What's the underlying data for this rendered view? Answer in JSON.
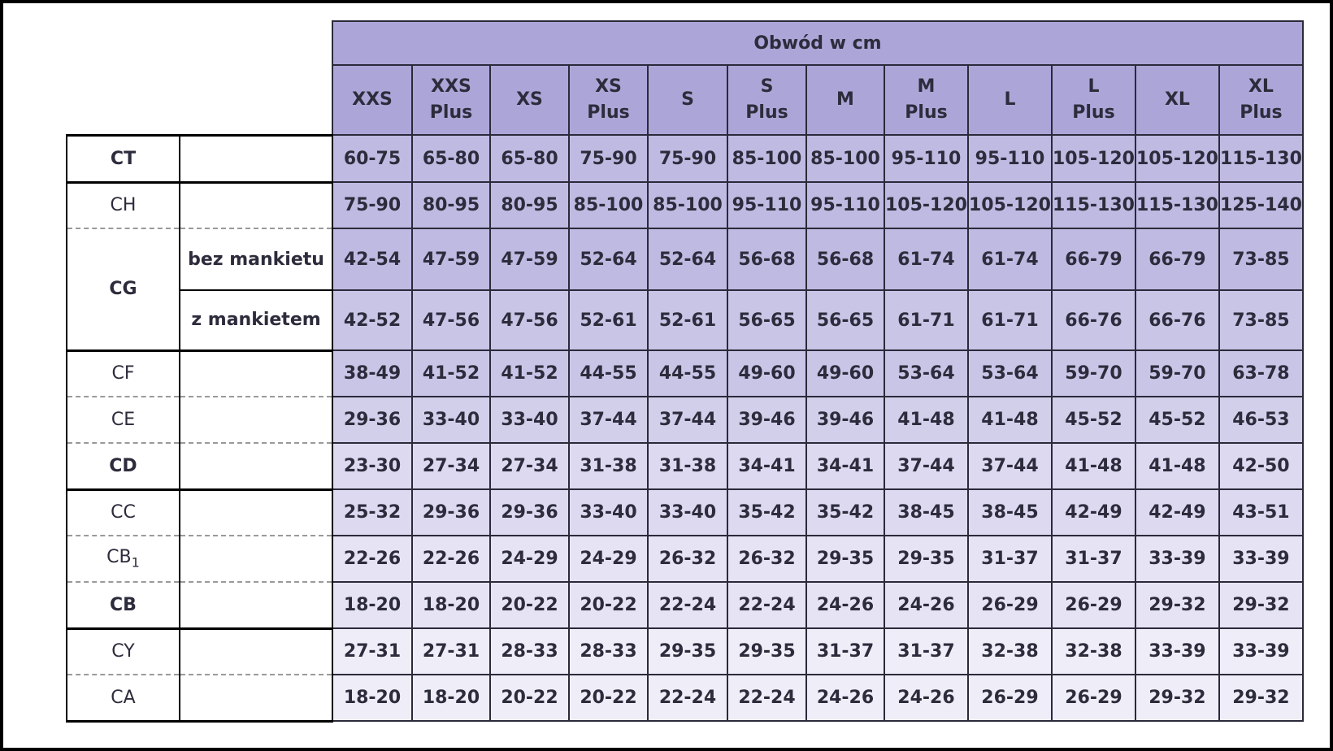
{
  "table": {
    "title": "Obwód w cm",
    "sizes": [
      [
        "XXS"
      ],
      [
        "XXS",
        "Plus"
      ],
      [
        "XS"
      ],
      [
        "XS",
        "Plus"
      ],
      [
        "S"
      ],
      [
        "S",
        "Plus"
      ],
      [
        "M"
      ],
      [
        "M",
        "Plus"
      ],
      [
        "L"
      ],
      [
        "L",
        "Plus"
      ],
      [
        "XL"
      ],
      [
        "XL",
        "Plus"
      ]
    ],
    "rows": {
      "ct": {
        "code": "CT",
        "values": [
          "60-75",
          "65-80",
          "65-80",
          "75-90",
          "75-90",
          "85-100",
          "85-100",
          "95-110",
          "95-110",
          "105-120",
          "105-120",
          "115-130"
        ]
      },
      "ch": {
        "code": "CH",
        "values": [
          "75-90",
          "80-95",
          "80-95",
          "85-100",
          "85-100",
          "95-110",
          "95-110",
          "105-120",
          "105-120",
          "115-130",
          "115-130",
          "125-140"
        ]
      },
      "cg": {
        "code": "CG",
        "sub1": {
          "label": "bez mankietu",
          "values": [
            "42-54",
            "47-59",
            "47-59",
            "52-64",
            "52-64",
            "56-68",
            "56-68",
            "61-74",
            "61-74",
            "66-79",
            "66-79",
            "73-85"
          ]
        },
        "sub2": {
          "label": "z mankietem",
          "values": [
            "42-52",
            "47-56",
            "47-56",
            "52-61",
            "52-61",
            "56-65",
            "56-65",
            "61-71",
            "61-71",
            "66-76",
            "66-76",
            "73-85"
          ]
        }
      },
      "cf": {
        "code": "CF",
        "values": [
          "38-49",
          "41-52",
          "41-52",
          "44-55",
          "44-55",
          "49-60",
          "49-60",
          "53-64",
          "53-64",
          "59-70",
          "59-70",
          "63-78"
        ]
      },
      "ce": {
        "code": "CE",
        "values": [
          "29-36",
          "33-40",
          "33-40",
          "37-44",
          "37-44",
          "39-46",
          "39-46",
          "41-48",
          "41-48",
          "45-52",
          "45-52",
          "46-53"
        ]
      },
      "cd": {
        "code": "CD",
        "values": [
          "23-30",
          "27-34",
          "27-34",
          "31-38",
          "31-38",
          "34-41",
          "34-41",
          "37-44",
          "37-44",
          "41-48",
          "41-48",
          "42-50"
        ]
      },
      "cc": {
        "code": "CC",
        "values": [
          "25-32",
          "29-36",
          "29-36",
          "33-40",
          "33-40",
          "35-42",
          "35-42",
          "38-45",
          "38-45",
          "42-49",
          "42-49",
          "43-51"
        ]
      },
      "cb1": {
        "code": "CB",
        "code_sub": "1",
        "values": [
          "22-26",
          "22-26",
          "24-29",
          "24-29",
          "26-32",
          "26-32",
          "29-35",
          "29-35",
          "31-37",
          "31-37",
          "33-39",
          "33-39"
        ]
      },
      "cb": {
        "code": "CB",
        "values": [
          "18-20",
          "18-20",
          "20-22",
          "20-22",
          "22-24",
          "22-24",
          "24-26",
          "24-26",
          "26-29",
          "26-29",
          "29-32",
          "29-32"
        ]
      },
      "cy": {
        "code": "CY",
        "values": [
          "27-31",
          "27-31",
          "28-33",
          "28-33",
          "29-35",
          "29-35",
          "31-37",
          "31-37",
          "32-38",
          "32-38",
          "33-39",
          "33-39"
        ]
      },
      "ca": {
        "code": "CA",
        "values": [
          "18-20",
          "18-20",
          "20-22",
          "20-22",
          "22-24",
          "22-24",
          "24-26",
          "24-26",
          "26-29",
          "26-29",
          "29-32",
          "29-32"
        ]
      }
    }
  }
}
